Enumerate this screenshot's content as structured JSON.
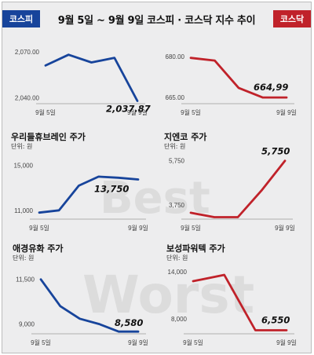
{
  "header": {
    "left_tag": "코스피",
    "title": "9월 5일 ~ 9월 9일  코스피 · 코스닥 지수 추이",
    "right_tag": "코스닥"
  },
  "watermark": {
    "best": "Best",
    "worst": "Worst"
  },
  "colors": {
    "kospi": "#17449b",
    "kosdaq": "#c0222a"
  },
  "chart_data": [
    {
      "type": "line",
      "title": "",
      "unit": "",
      "color": "#17449b",
      "x": [
        "9월 5일",
        "",
        "",
        "",
        "9월 9일"
      ],
      "values": [
        2061,
        2068,
        2063,
        2066,
        2037.87
      ],
      "ylim": [
        2033,
        2074
      ],
      "yticks": [
        2040,
        2070
      ],
      "ytick_labels": [
        "2,040.00",
        "2,070.00"
      ],
      "last_label": "2,037.87",
      "grid": false
    },
    {
      "type": "line",
      "title": "",
      "unit": "",
      "color": "#c0222a",
      "x": [
        "9월 5일",
        "",
        "",
        "",
        "9월 9일"
      ],
      "values": [
        679.5,
        678.5,
        668.5,
        664.99,
        664.99
      ],
      "ylim": [
        661,
        684
      ],
      "yticks": [
        665,
        680
      ],
      "ytick_labels": [
        "665.00",
        "680.00"
      ],
      "last_label": "664,99",
      "grid": false
    },
    {
      "type": "line",
      "title": "우리들휴브레인 주가",
      "unit": "단위: 원",
      "color": "#17449b",
      "x": [
        "9월 5일",
        "",
        "",
        "",
        "",
        "9월 9일"
      ],
      "values": [
        10800,
        11000,
        13200,
        14000,
        13900,
        13750
      ],
      "ylim": [
        9800,
        16300
      ],
      "yticks": [
        11000,
        15000
      ],
      "ytick_labels": [
        "11,000",
        "15,000"
      ],
      "last_label": "13,750",
      "grid": false
    },
    {
      "type": "line",
      "title": "지엔코 주가",
      "unit": "단위: 원",
      "color": "#c0222a",
      "x": [
        "9월 5일",
        "",
        "",
        "",
        "9월 9일"
      ],
      "values": [
        3400,
        3200,
        3200,
        4400,
        5750
      ],
      "ylim": [
        2900,
        6200
      ],
      "yticks": [
        3750,
        5750
      ],
      "ytick_labels": [
        "3,750",
        "5,750"
      ],
      "last_label": "5,750",
      "grid": false
    },
    {
      "type": "line",
      "title": "애경유화 주가",
      "unit": "단위: 원",
      "color": "#17449b",
      "x": [
        "9월 5일",
        "",
        "",
        "",
        "",
        "9월 9일"
      ],
      "values": [
        11500,
        10000,
        9300,
        9000,
        8580,
        8580
      ],
      "ylim": [
        8150,
        12450
      ],
      "yticks": [
        9000,
        11500
      ],
      "ytick_labels": [
        "9,000",
        "11,500"
      ],
      "last_label": "8,580",
      "grid": false
    },
    {
      "type": "line",
      "title": "보성파워텍 주가",
      "unit": "단위: 원",
      "color": "#c0222a",
      "x": [
        "9월 5일",
        "",
        "",
        "9월 9일"
      ],
      "values": [
        12800,
        13600,
        6550,
        6550
      ],
      "ylim": [
        5400,
        15200
      ],
      "yticks": [
        8000,
        14000
      ],
      "ytick_labels": [
        "8,000",
        "14,000"
      ],
      "last_label": "6,550",
      "grid": false
    }
  ]
}
